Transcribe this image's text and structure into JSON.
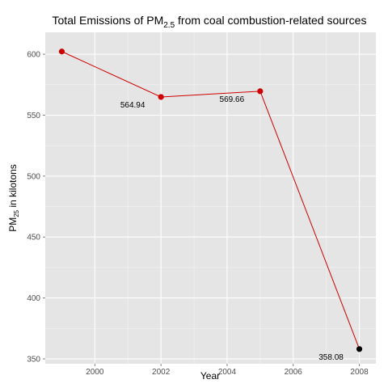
{
  "chart_data": {
    "type": "line",
    "title": {
      "prefix": "Total Emissions of PM",
      "subscript": "2.5",
      "suffix": " from coal combustion-related sources"
    },
    "xlabel": "Year",
    "ylabel": {
      "prefix": "PM",
      "subscript": "25",
      "suffix": " in kilotons"
    },
    "x": [
      1999,
      2002,
      2005,
      2008
    ],
    "series": [
      {
        "values": [
          602.24,
          564.94,
          569.66,
          358.08
        ],
        "point_colors": [
          "#cc0000",
          "#cc0000",
          "#cc0000",
          "#000000"
        ]
      }
    ],
    "data_labels": [
      "",
      "564.94",
      "569.66",
      "358.08"
    ],
    "line_color": "#cc0000",
    "panel_background": "#e5e5e5",
    "grid_color": "#ffffff",
    "grid": true,
    "xlim": [
      1998.5,
      2008.5
    ],
    "ylim": [
      346,
      618
    ],
    "xticks": [
      2000,
      2002,
      2004,
      2006,
      2008
    ],
    "yticks": [
      350,
      400,
      450,
      500,
      550,
      600
    ]
  }
}
